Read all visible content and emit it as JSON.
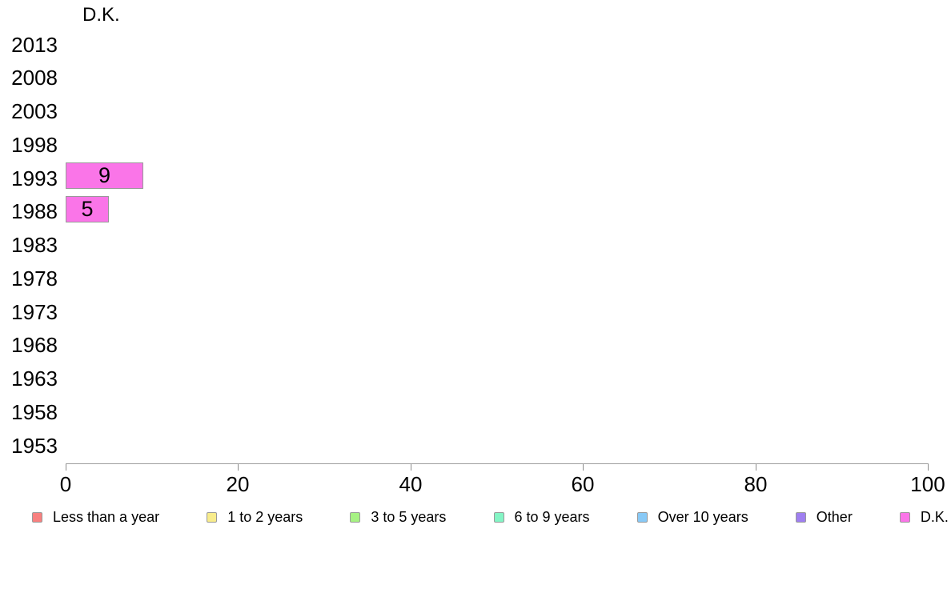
{
  "chart_data": {
    "type": "bar",
    "orientation": "horizontal",
    "title": "D.K.",
    "categories": [
      "2013",
      "2008",
      "2003",
      "1998",
      "1993",
      "1988",
      "1983",
      "1978",
      "1973",
      "1968",
      "1963",
      "1958",
      "1953"
    ],
    "series": [
      {
        "name": "D.K.",
        "color": "#FA75E8",
        "values": [
          null,
          null,
          null,
          null,
          9,
          5,
          null,
          null,
          null,
          null,
          null,
          null,
          null
        ]
      }
    ],
    "xlim": [
      0,
      100
    ],
    "xticks": [
      0,
      20,
      40,
      60,
      80,
      100
    ],
    "grid": false,
    "value_labels": true,
    "legend_position": "bottom",
    "legend": [
      {
        "label": "Less than a year",
        "color": "#F8807F"
      },
      {
        "label": "1 to 2 years",
        "color": "#F8EC8C"
      },
      {
        "label": "3 to 5 years",
        "color": "#A6F283"
      },
      {
        "label": "6 to 9 years",
        "color": "#84F5C5"
      },
      {
        "label": "Over 10 years",
        "color": "#88C9F6"
      },
      {
        "label": "Other",
        "color": "#9F7FF0"
      },
      {
        "label": "D.K.",
        "color": "#FA75E8"
      }
    ],
    "colors": {
      "bar_fill": "#FA75E8",
      "bar_border": "#999999",
      "axis_line": "#9E9E9E",
      "tick": "#8C8C8C",
      "text": "#000000",
      "background": "#FFFFFF"
    }
  }
}
